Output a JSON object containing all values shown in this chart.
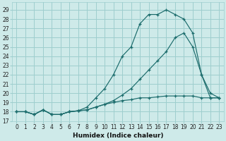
{
  "bg_color": "#ceeae9",
  "grid_color": "#9ecece",
  "line_color": "#1a6b6b",
  "xlabel": "Humidex (Indice chaleur)",
  "xlim": [
    -0.5,
    23.5
  ],
  "ylim": [
    17,
    29.8
  ],
  "yticks": [
    17,
    18,
    19,
    20,
    21,
    22,
    23,
    24,
    25,
    26,
    27,
    28,
    29
  ],
  "xticks": [
    0,
    1,
    2,
    3,
    4,
    5,
    6,
    7,
    8,
    9,
    10,
    11,
    12,
    13,
    14,
    15,
    16,
    17,
    18,
    19,
    20,
    21,
    22,
    23
  ],
  "series1_x": [
    0,
    1,
    2,
    3,
    4,
    5,
    6,
    7,
    8,
    9,
    10,
    11,
    12,
    13,
    14,
    15,
    16,
    17,
    18,
    19,
    20,
    21,
    22,
    23
  ],
  "series1_y": [
    18,
    18,
    17.7,
    18.2,
    17.7,
    17.7,
    18,
    18.1,
    18.5,
    19.5,
    20.5,
    22,
    24,
    25,
    27.5,
    28.5,
    28.5,
    29,
    28.5,
    28,
    26.5,
    22,
    20,
    19.5
  ],
  "series2_x": [
    0,
    1,
    2,
    3,
    4,
    5,
    6,
    7,
    8,
    9,
    10,
    11,
    12,
    13,
    14,
    15,
    16,
    17,
    18,
    19,
    20,
    21,
    22,
    23
  ],
  "series2_y": [
    18,
    18,
    17.7,
    18.2,
    17.7,
    17.7,
    18,
    18.1,
    18.2,
    18.5,
    18.8,
    19.2,
    19.8,
    20.5,
    21.5,
    22.5,
    23.5,
    24.5,
    26,
    26.5,
    25,
    22,
    19.5,
    19.5
  ],
  "series3_x": [
    0,
    1,
    2,
    3,
    4,
    5,
    6,
    7,
    8,
    9,
    10,
    11,
    12,
    13,
    14,
    15,
    16,
    17,
    18,
    19,
    20,
    21,
    22,
    23
  ],
  "series3_y": [
    18,
    18,
    17.7,
    18.2,
    17.7,
    17.7,
    18,
    18.1,
    18.2,
    18.5,
    18.8,
    19,
    19.2,
    19.3,
    19.5,
    19.5,
    19.6,
    19.7,
    19.7,
    19.7,
    19.7,
    19.5,
    19.5,
    19.5
  ]
}
